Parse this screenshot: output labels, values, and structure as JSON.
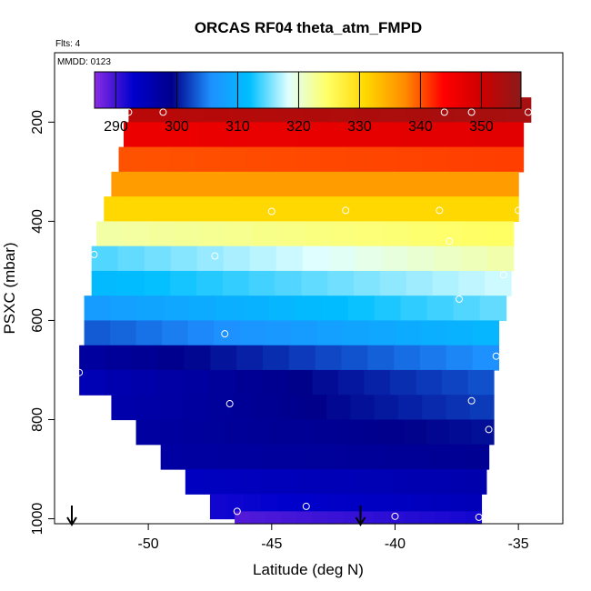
{
  "chart_data": {
    "type": "heatmap",
    "title": "ORCAS RF04 theta_atm_FMPD",
    "subtitle": "Flts: 4",
    "annotation": "MMDD: 0123",
    "xlabel": "Latitude (deg N)",
    "ylabel": "PSXC (mbar)",
    "xlim": [
      -53.8,
      -33.2
    ],
    "ylim": [
      1010,
      60
    ],
    "y_reversed": true,
    "x_ticks": [
      -50,
      -45,
      -40,
      -35
    ],
    "x_tick_labels": [
      "-50",
      "-45",
      "-40",
      "-35"
    ],
    "y_ticks": [
      200,
      400,
      600,
      800,
      1000
    ],
    "y_tick_labels": [
      "200",
      "400",
      "600",
      "800",
      "1000"
    ],
    "colorbar": {
      "range": [
        286.5,
        356.5
      ],
      "ticks": [
        290,
        300,
        310,
        320,
        330,
        340,
        350
      ],
      "tick_labels": [
        "290",
        "300",
        "310",
        "320",
        "330",
        "340",
        "350"
      ],
      "colors": [
        "#8a2be2",
        "#0000cd",
        "#00008b",
        "#1e90ff",
        "#00bfff",
        "#e0ffff",
        "#ffff66",
        "#ffd700",
        "#ff8c00",
        "#ff0000",
        "#cd0000",
        "#8b1a1a"
      ]
    },
    "band_height_mbar": 50,
    "bands": [
      {
        "p": 175,
        "x0": -50.8,
        "x1": -34.5,
        "t_left": 352.0,
        "t_right": 354.0
      },
      {
        "p": 225,
        "x0": -51.0,
        "x1": -34.8,
        "t_left": 346.0,
        "t_right": 347.5
      },
      {
        "p": 275,
        "x0": -51.2,
        "x1": -34.8,
        "t_left": 340.0,
        "t_right": 341.0
      },
      {
        "p": 325,
        "x0": -51.5,
        "x1": -35.0,
        "t_left": 336.0,
        "t_right": 336.0
      },
      {
        "p": 375,
        "x0": -51.8,
        "x1": -35.0,
        "t_left": 331.0,
        "t_right": 331.0
      },
      {
        "p": 425,
        "x0": -52.1,
        "x1": -35.2,
        "t_left": 322.0,
        "t_right": 325.0
      },
      {
        "p": 475,
        "x0": -52.3,
        "x1": -35.2,
        "t_left": 314.0,
        "t_right": 322.0
      },
      {
        "p": 525,
        "x0": -52.3,
        "x1": -35.3,
        "t_left": 311.0,
        "t_right": 318.0
      },
      {
        "p": 575,
        "x0": -52.6,
        "x1": -35.5,
        "t_left": 307.0,
        "t_right": 315.0
      },
      {
        "p": 625,
        "x0": -52.6,
        "x1": -35.8,
        "t_left": 303.0,
        "t_right": 311.0
      },
      {
        "p": 675,
        "x0": -52.8,
        "x1": -35.8,
        "t_left": 297.0,
        "t_right": 306.0
      },
      {
        "p": 725,
        "x0": -52.8,
        "x1": -36.0,
        "t_left": 295.0,
        "t_right": 303.0
      },
      {
        "p": 775,
        "x0": -51.5,
        "x1": -36.0,
        "t_left": 296.0,
        "t_right": 302.0
      },
      {
        "p": 825,
        "x0": -50.5,
        "x1": -36.0,
        "t_left": 297.0,
        "t_right": 300.0
      },
      {
        "p": 875,
        "x0": -49.5,
        "x1": -36.2,
        "t_left": 297.0,
        "t_right": 298.5
      },
      {
        "p": 925,
        "x0": -48.5,
        "x1": -36.3,
        "t_left": 294.0,
        "t_right": 296.0
      },
      {
        "p": 975,
        "x0": -47.5,
        "x1": -36.5,
        "t_left": 292.0,
        "t_right": 295.0
      },
      {
        "p": 1010,
        "x0": -46.5,
        "x1": -36.5,
        "t_left": 289.0,
        "t_right": 292.0
      }
    ],
    "points": [
      {
        "x": -50.8,
        "y": 180
      },
      {
        "x": -49.4,
        "y": 180
      },
      {
        "x": -38.0,
        "y": 180
      },
      {
        "x": -36.9,
        "y": 180
      },
      {
        "x": -34.6,
        "y": 180
      },
      {
        "x": -45.0,
        "y": 380
      },
      {
        "x": -42.0,
        "y": 378
      },
      {
        "x": -38.2,
        "y": 378
      },
      {
        "x": -35.0,
        "y": 378
      },
      {
        "x": -37.8,
        "y": 440
      },
      {
        "x": -52.2,
        "y": 467
      },
      {
        "x": -47.3,
        "y": 470
      },
      {
        "x": -35.6,
        "y": 508
      },
      {
        "x": -37.4,
        "y": 557
      },
      {
        "x": -46.9,
        "y": 627
      },
      {
        "x": -35.9,
        "y": 672
      },
      {
        "x": -52.8,
        "y": 705
      },
      {
        "x": -46.7,
        "y": 768
      },
      {
        "x": -36.9,
        "y": 762
      },
      {
        "x": -36.2,
        "y": 820
      },
      {
        "x": -43.6,
        "y": 975
      },
      {
        "x": -46.4,
        "y": 985
      },
      {
        "x": -40.0,
        "y": 995
      },
      {
        "x": -36.6,
        "y": 997
      }
    ],
    "arrows_x": [
      -53.1,
      -41.4
    ]
  }
}
